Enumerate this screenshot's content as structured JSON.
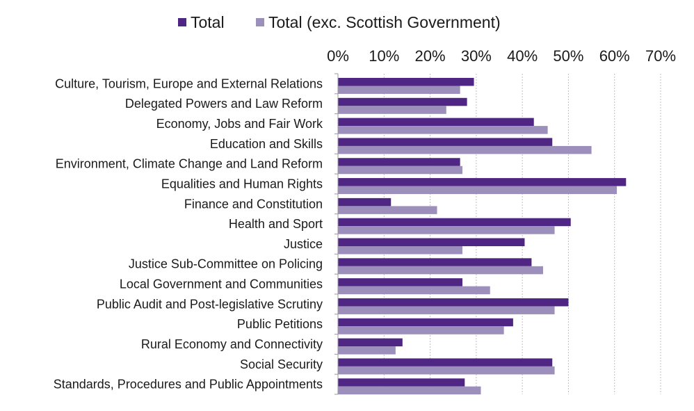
{
  "chart_data": {
    "type": "bar",
    "orientation": "horizontal",
    "categories": [
      "Culture, Tourism, Europe and External Relations",
      "Delegated Powers and Law Reform",
      "Economy, Jobs and Fair Work",
      "Education and Skills",
      "Environment, Climate Change and Land Reform",
      "Equalities and Human Rights",
      "Finance and Constitution",
      "Health and Sport",
      "Justice",
      "Justice Sub-Committee on Policing",
      "Local Government and Communities",
      "Public Audit and Post-legislative Scrutiny",
      "Public Petitions",
      "Rural Economy and Connectivity",
      "Social Security",
      "Standards, Procedures and Public Appointments"
    ],
    "series": [
      {
        "name": "Total",
        "color": "#4f2683",
        "values": [
          29.5,
          28,
          42.5,
          46.5,
          26.5,
          62.5,
          11.5,
          50.5,
          40.5,
          42,
          27,
          50,
          38,
          14,
          46.5,
          27.5
        ]
      },
      {
        "name": "Total (exc. Scottish Government)",
        "color": "#9d8fbc",
        "values": [
          26.5,
          23.5,
          45.5,
          55,
          27,
          60.5,
          21.5,
          47,
          27,
          44.5,
          33,
          47,
          36,
          12.5,
          47,
          31
        ]
      }
    ],
    "xlim": [
      0,
      70
    ],
    "xticks": [
      "0%",
      "10%",
      "20%",
      "30%",
      "40%",
      "50%",
      "60%",
      "70%"
    ],
    "x_axis_position": "top",
    "grid": "vertical",
    "legend_position": "top"
  }
}
